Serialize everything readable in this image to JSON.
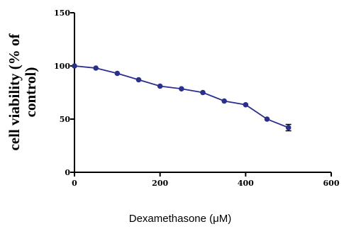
{
  "chart_data": {
    "type": "line",
    "title": "",
    "xlabel": "Dexamethasone (μM)",
    "ylabel_lines": [
      "cell viability (% of",
      "control)"
    ],
    "xlim": [
      0,
      600
    ],
    "ylim": [
      0,
      150
    ],
    "x_ticks": [
      "0",
      "200",
      "400",
      "600"
    ],
    "y_ticks": [
      "0",
      "50",
      "100",
      "150"
    ],
    "grid": false,
    "series": [
      {
        "color": "#2b2f8f",
        "x": [
          0,
          50,
          100,
          150,
          200,
          250,
          300,
          350,
          400,
          450,
          500
        ],
        "y": [
          100,
          98,
          93,
          87,
          81,
          78.5,
          75,
          67,
          63.5,
          50,
          42
        ],
        "error": [
          0,
          0,
          0,
          0,
          0,
          0,
          0,
          0,
          0,
          0,
          3
        ]
      }
    ]
  }
}
